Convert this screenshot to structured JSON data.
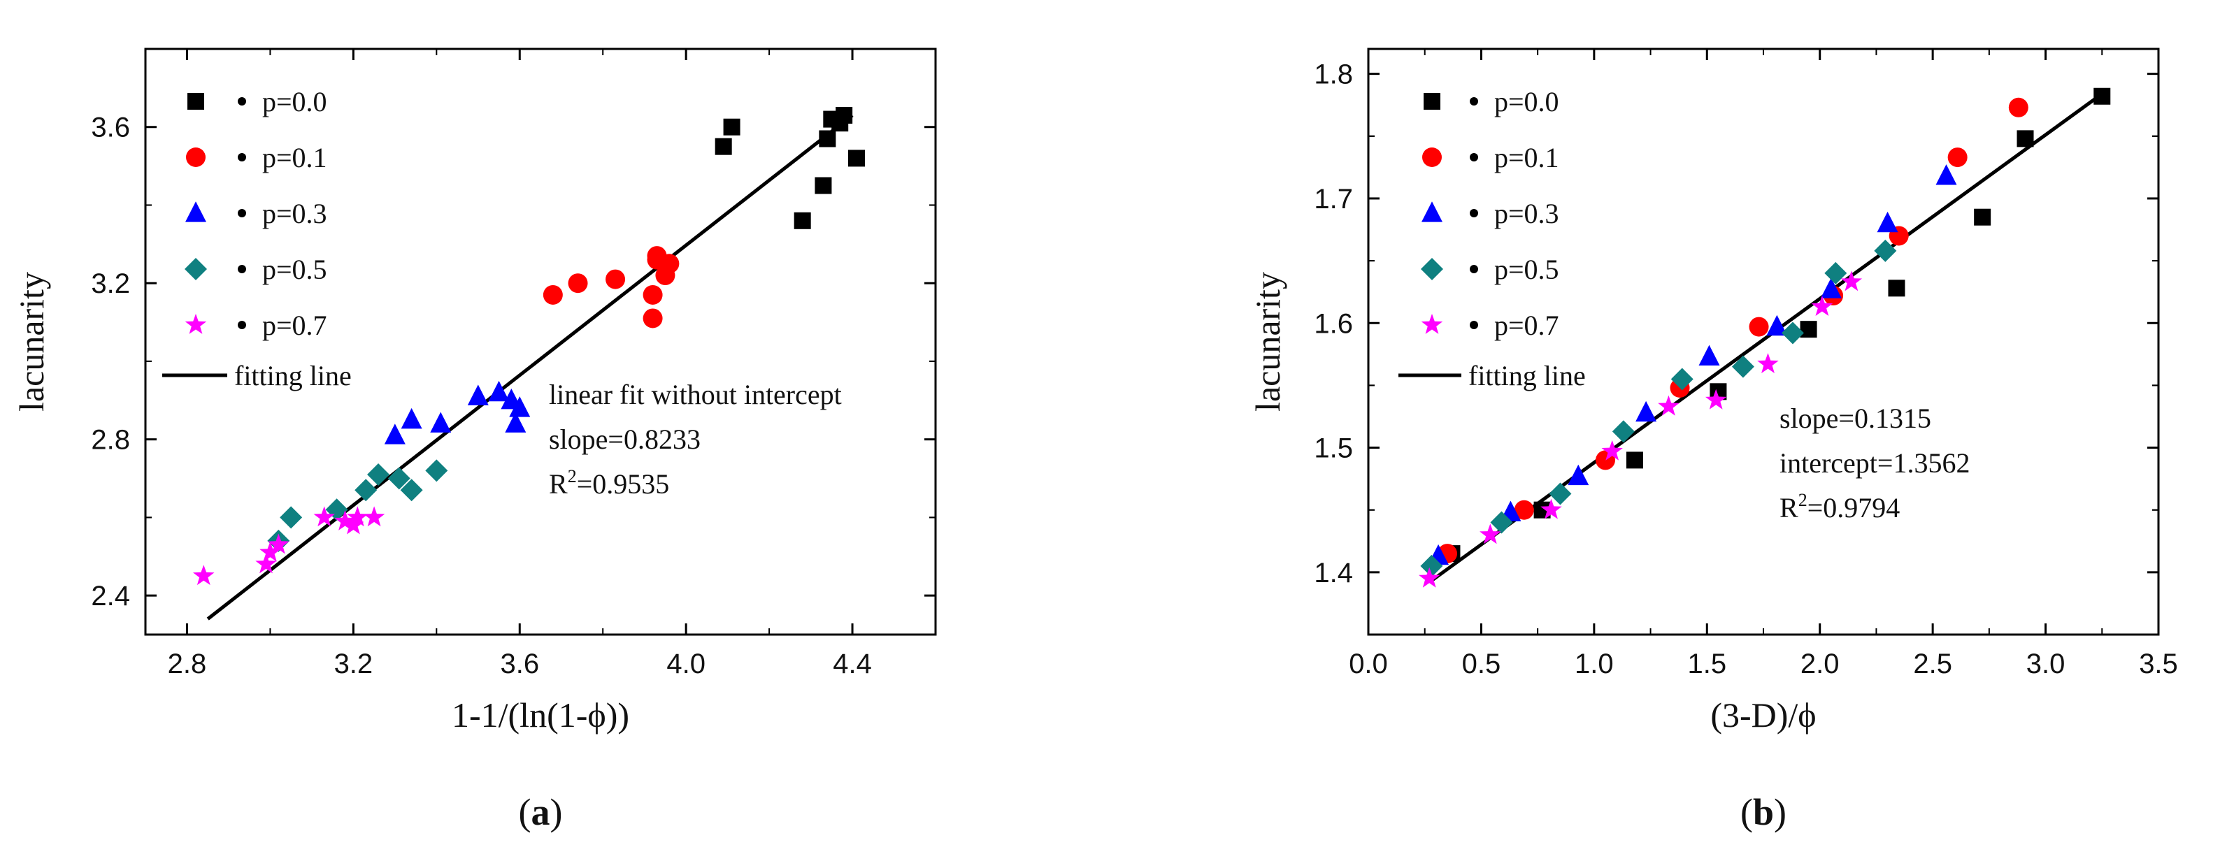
{
  "chart_data": [
    {
      "type": "scatter",
      "panel_label": "(a)",
      "panel_letter": "a",
      "xlabel": "1-1/(ln(1-ϕ))",
      "ylabel": "lacunarity",
      "xlim": [
        2.7,
        4.6
      ],
      "ylim": [
        2.3,
        3.8
      ],
      "xticks": [
        2.8,
        3.2,
        3.6,
        4.0,
        4.4
      ],
      "yticks": [
        2.4,
        2.8,
        3.2,
        3.6
      ],
      "xtick_labels": [
        "2.8",
        "3.2",
        "3.6",
        "4.0",
        "4.4"
      ],
      "ytick_labels": [
        "2.4",
        "2.8",
        "3.2",
        "3.6"
      ],
      "legend_position": "top-left",
      "series": [
        {
          "name": "p=0.0",
          "marker": "square",
          "color": "#000000",
          "points": [
            [
              4.09,
              3.55
            ],
            [
              4.11,
              3.6
            ],
            [
              4.34,
              3.57
            ],
            [
              4.35,
              3.62
            ],
            [
              4.37,
              3.61
            ],
            [
              4.38,
              3.63
            ],
            [
              4.33,
              3.45
            ],
            [
              4.41,
              3.52
            ],
            [
              4.28,
              3.36
            ]
          ]
        },
        {
          "name": "p=0.1",
          "marker": "circle",
          "color": "#ff0000",
          "points": [
            [
              3.68,
              3.17
            ],
            [
              3.74,
              3.2
            ],
            [
              3.83,
              3.21
            ],
            [
              3.92,
              3.17
            ],
            [
              3.93,
              3.26
            ],
            [
              3.93,
              3.27
            ],
            [
              3.95,
              3.22
            ],
            [
              3.96,
              3.25
            ],
            [
              3.92,
              3.11
            ]
          ]
        },
        {
          "name": "p=0.3",
          "marker": "triangle",
          "color": "#0000ff",
          "points": [
            [
              3.3,
              2.81
            ],
            [
              3.34,
              2.85
            ],
            [
              3.41,
              2.84
            ],
            [
              3.5,
              2.91
            ],
            [
              3.55,
              2.92
            ],
            [
              3.58,
              2.9
            ],
            [
              3.6,
              2.88
            ],
            [
              3.59,
              2.84
            ]
          ]
        },
        {
          "name": "p=0.5",
          "marker": "diamond",
          "color": "#0f8080",
          "points": [
            [
              3.02,
              2.54
            ],
            [
              3.05,
              2.6
            ],
            [
              3.16,
              2.62
            ],
            [
              3.23,
              2.67
            ],
            [
              3.26,
              2.71
            ],
            [
              3.31,
              2.7
            ],
            [
              3.34,
              2.67
            ],
            [
              3.4,
              2.72
            ]
          ]
        },
        {
          "name": "p=0.7",
          "marker": "star",
          "color": "#ff00ff",
          "points": [
            [
              2.84,
              2.45
            ],
            [
              2.99,
              2.48
            ],
            [
              3.0,
              2.51
            ],
            [
              3.02,
              2.53
            ],
            [
              3.13,
              2.6
            ],
            [
              3.18,
              2.59
            ],
            [
              3.2,
              2.58
            ],
            [
              3.21,
              2.6
            ],
            [
              3.25,
              2.6
            ]
          ]
        }
      ],
      "fit_line": {
        "x": [
          2.85,
          4.4
        ],
        "y": [
          2.34,
          3.63
        ]
      },
      "fit_legend": "fitting line",
      "annotation_lines": [
        "linear fit without intercept",
        "slope=0.8233"
      ],
      "r2": {
        "prefix": "R",
        "sup": "2",
        "suffix": "=0.9535"
      }
    },
    {
      "type": "scatter",
      "panel_label": "(b)",
      "panel_letter": "b",
      "xlabel": "(3-D)/ϕ",
      "ylabel": "lacunarity",
      "xlim": [
        0.0,
        3.5
      ],
      "ylim": [
        1.35,
        1.82
      ],
      "xticks": [
        0.0,
        0.5,
        1.0,
        1.5,
        2.0,
        2.5,
        3.0,
        3.5
      ],
      "yticks": [
        1.4,
        1.5,
        1.6,
        1.7,
        1.8
      ],
      "xtick_labels": [
        "0.0",
        "0.5",
        "1.0",
        "1.5",
        "2.0",
        "2.5",
        "3.0",
        "3.5"
      ],
      "ytick_labels": [
        "1.4",
        "1.5",
        "1.6",
        "1.7",
        "1.8"
      ],
      "legend_position": "top-left",
      "series": [
        {
          "name": "p=0.0",
          "marker": "square",
          "color": "#000000",
          "points": [
            [
              0.37,
              1.415
            ],
            [
              0.77,
              1.45
            ],
            [
              1.18,
              1.49
            ],
            [
              1.55,
              1.545
            ],
            [
              1.95,
              1.595
            ],
            [
              2.34,
              1.628
            ],
            [
              2.72,
              1.685
            ],
            [
              2.91,
              1.748
            ],
            [
              3.25,
              1.782
            ]
          ]
        },
        {
          "name": "p=0.1",
          "marker": "circle",
          "color": "#ff0000",
          "points": [
            [
              0.35,
              1.415
            ],
            [
              0.69,
              1.45
            ],
            [
              1.05,
              1.49
            ],
            [
              1.38,
              1.548
            ],
            [
              1.73,
              1.597
            ],
            [
              2.06,
              1.622
            ],
            [
              2.35,
              1.67
            ],
            [
              2.61,
              1.733
            ],
            [
              2.88,
              1.773
            ]
          ]
        },
        {
          "name": "p=0.3",
          "marker": "triangle",
          "color": "#0000ff",
          "points": [
            [
              0.31,
              1.413
            ],
            [
              0.63,
              1.448
            ],
            [
              0.93,
              1.477
            ],
            [
              1.23,
              1.528
            ],
            [
              1.51,
              1.573
            ],
            [
              1.81,
              1.597
            ],
            [
              2.05,
              1.627
            ],
            [
              2.3,
              1.68
            ],
            [
              2.56,
              1.718
            ]
          ]
        },
        {
          "name": "p=0.5",
          "marker": "diamond",
          "color": "#0f8080",
          "points": [
            [
              0.28,
              1.405
            ],
            [
              0.59,
              1.44
            ],
            [
              0.85,
              1.463
            ],
            [
              1.13,
              1.513
            ],
            [
              1.39,
              1.555
            ],
            [
              1.66,
              1.565
            ],
            [
              1.88,
              1.592
            ],
            [
              2.07,
              1.64
            ],
            [
              2.29,
              1.658
            ]
          ]
        },
        {
          "name": "p=0.7",
          "marker": "star",
          "color": "#ff00ff",
          "points": [
            [
              0.27,
              1.395
            ],
            [
              0.54,
              1.43
            ],
            [
              0.81,
              1.45
            ],
            [
              1.08,
              1.497
            ],
            [
              1.33,
              1.533
            ],
            [
              1.54,
              1.538
            ],
            [
              1.77,
              1.567
            ],
            [
              2.01,
              1.613
            ],
            [
              2.14,
              1.633
            ]
          ]
        }
      ],
      "fit_line": {
        "x": [
          0.27,
          3.22
        ],
        "y": [
          1.392,
          1.78
        ]
      },
      "fit_legend": "fitting line",
      "annotation_lines": [
        "slope=0.1315",
        "intercept=1.3562"
      ],
      "r2": {
        "prefix": "R",
        "sup": "2",
        "suffix": "=0.9794"
      }
    }
  ]
}
